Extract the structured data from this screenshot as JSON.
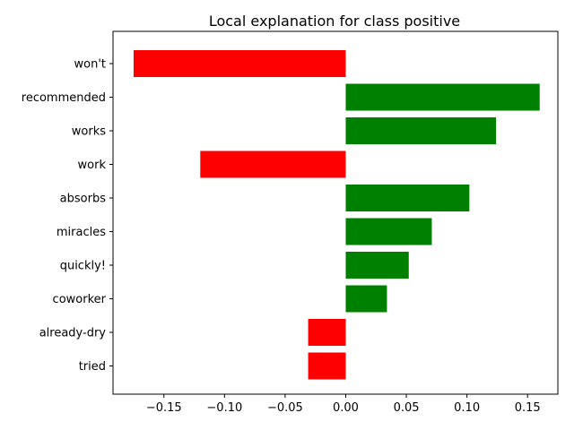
{
  "chart_data": {
    "type": "bar",
    "orientation": "horizontal",
    "title": "Local explanation for class positive",
    "xlabel": "",
    "ylabel": "",
    "xlim": [
      -0.192,
      0.175
    ],
    "xticks": [
      -0.15,
      -0.1,
      -0.05,
      0.0,
      0.05,
      0.1,
      0.15
    ],
    "xtick_labels": [
      "−0.15",
      "−0.10",
      "−0.05",
      "0.00",
      "0.05",
      "0.10",
      "0.15"
    ],
    "categories": [
      "won't",
      "recommended",
      "works",
      "work",
      "absorbs",
      "miracles",
      "quickly!",
      "coworker",
      "already-dry",
      "tried"
    ],
    "values": [
      -0.175,
      0.16,
      0.124,
      -0.12,
      0.102,
      0.071,
      0.052,
      0.034,
      -0.031,
      -0.031
    ],
    "colors": {
      "positive": "#008000",
      "negative": "#ff0000"
    },
    "grid": false,
    "legend": "none"
  }
}
